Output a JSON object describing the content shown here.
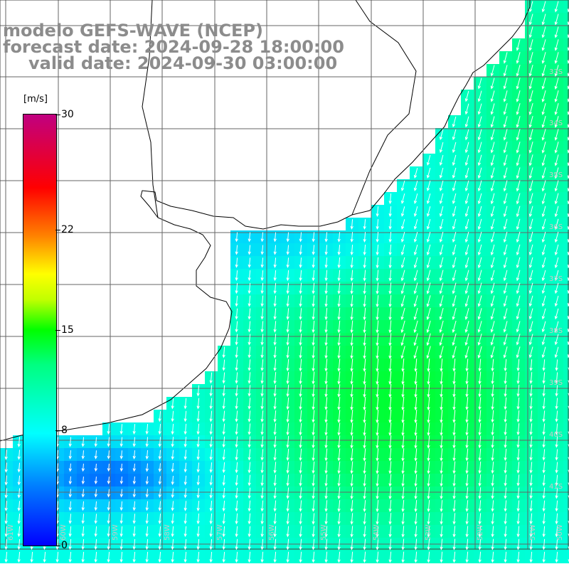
{
  "title": {
    "line1": "modelo GEFS-WAVE (NCEP)",
    "line2": "forecast date: 2024-09-28 18:00:00",
    "line3": "valid date: 2024-09-30 03:00:00"
  },
  "colorbar": {
    "unit": "[m/s]",
    "ticks": [
      {
        "value": 30,
        "label": "30"
      },
      {
        "value": 22,
        "label": "22"
      },
      {
        "value": 15,
        "label": "15"
      },
      {
        "value": 8,
        "label": "8"
      },
      {
        "value": 0,
        "label": "0"
      }
    ],
    "colors": [
      "#0000ff",
      "#0080ff",
      "#00ffff",
      "#00ff80",
      "#00ff00",
      "#c0ff00",
      "#ffff00",
      "#ff8000",
      "#ff0000",
      "#c00080"
    ],
    "min": 0,
    "max": 30
  },
  "map": {
    "grid_lines": true,
    "longitude_labels": [
      "61W",
      "60W",
      "59W",
      "58W",
      "57W",
      "56W",
      "55W",
      "54W",
      "53W",
      "52W",
      "51W",
      "50W"
    ],
    "latitude_labels": [
      "33S",
      "34S",
      "35S",
      "36S",
      "37S",
      "38S",
      "39S",
      "40S",
      "41S"
    ],
    "field": "wind speed with direction arrows",
    "colors": {
      "land": "#ffffff",
      "coast": "#000000",
      "grid": "#666666",
      "arrow": "#ffffff"
    }
  }
}
